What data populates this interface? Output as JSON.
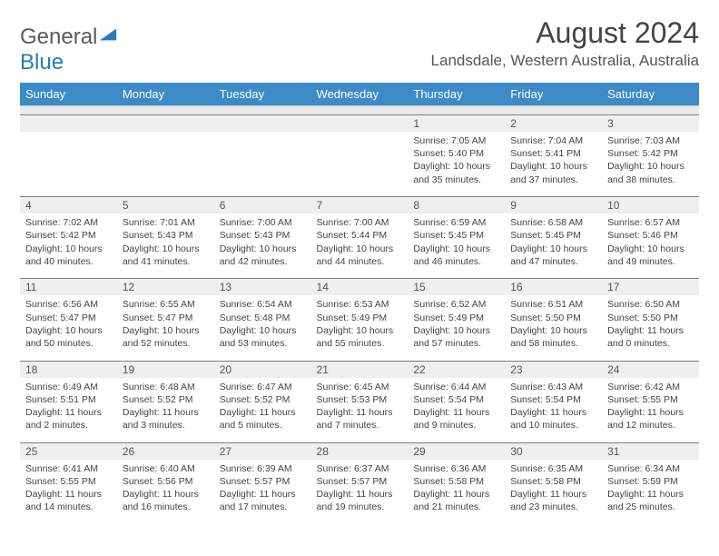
{
  "logo": {
    "general": "General",
    "blue": "Blue"
  },
  "title": "August 2024",
  "location": "Landsdale, Western Australia, Australia",
  "colors": {
    "header_bg": "#3c8bc6",
    "daynum_bg": "#efefef",
    "sep_bg": "#e9e9e9",
    "border": "#7e7e7e",
    "logo_blue": "#2a7ab9",
    "text": "#444444"
  },
  "day_headers": [
    "Sunday",
    "Monday",
    "Tuesday",
    "Wednesday",
    "Thursday",
    "Friday",
    "Saturday"
  ],
  "weeks": [
    {
      "nums": [
        "",
        "",
        "",
        "",
        "1",
        "2",
        "3"
      ],
      "cells": [
        {},
        {},
        {},
        {},
        {
          "sunrise": "Sunrise: 7:05 AM",
          "sunset": "Sunset: 5:40 PM",
          "daylight": "Daylight: 10 hours and 35 minutes."
        },
        {
          "sunrise": "Sunrise: 7:04 AM",
          "sunset": "Sunset: 5:41 PM",
          "daylight": "Daylight: 10 hours and 37 minutes."
        },
        {
          "sunrise": "Sunrise: 7:03 AM",
          "sunset": "Sunset: 5:42 PM",
          "daylight": "Daylight: 10 hours and 38 minutes."
        }
      ]
    },
    {
      "nums": [
        "4",
        "5",
        "6",
        "7",
        "8",
        "9",
        "10"
      ],
      "cells": [
        {
          "sunrise": "Sunrise: 7:02 AM",
          "sunset": "Sunset: 5:42 PM",
          "daylight": "Daylight: 10 hours and 40 minutes."
        },
        {
          "sunrise": "Sunrise: 7:01 AM",
          "sunset": "Sunset: 5:43 PM",
          "daylight": "Daylight: 10 hours and 41 minutes."
        },
        {
          "sunrise": "Sunrise: 7:00 AM",
          "sunset": "Sunset: 5:43 PM",
          "daylight": "Daylight: 10 hours and 42 minutes."
        },
        {
          "sunrise": "Sunrise: 7:00 AM",
          "sunset": "Sunset: 5:44 PM",
          "daylight": "Daylight: 10 hours and 44 minutes."
        },
        {
          "sunrise": "Sunrise: 6:59 AM",
          "sunset": "Sunset: 5:45 PM",
          "daylight": "Daylight: 10 hours and 46 minutes."
        },
        {
          "sunrise": "Sunrise: 6:58 AM",
          "sunset": "Sunset: 5:45 PM",
          "daylight": "Daylight: 10 hours and 47 minutes."
        },
        {
          "sunrise": "Sunrise: 6:57 AM",
          "sunset": "Sunset: 5:46 PM",
          "daylight": "Daylight: 10 hours and 49 minutes."
        }
      ]
    },
    {
      "nums": [
        "11",
        "12",
        "13",
        "14",
        "15",
        "16",
        "17"
      ],
      "cells": [
        {
          "sunrise": "Sunrise: 6:56 AM",
          "sunset": "Sunset: 5:47 PM",
          "daylight": "Daylight: 10 hours and 50 minutes."
        },
        {
          "sunrise": "Sunrise: 6:55 AM",
          "sunset": "Sunset: 5:47 PM",
          "daylight": "Daylight: 10 hours and 52 minutes."
        },
        {
          "sunrise": "Sunrise: 6:54 AM",
          "sunset": "Sunset: 5:48 PM",
          "daylight": "Daylight: 10 hours and 53 minutes."
        },
        {
          "sunrise": "Sunrise: 6:53 AM",
          "sunset": "Sunset: 5:49 PM",
          "daylight": "Daylight: 10 hours and 55 minutes."
        },
        {
          "sunrise": "Sunrise: 6:52 AM",
          "sunset": "Sunset: 5:49 PM",
          "daylight": "Daylight: 10 hours and 57 minutes."
        },
        {
          "sunrise": "Sunrise: 6:51 AM",
          "sunset": "Sunset: 5:50 PM",
          "daylight": "Daylight: 10 hours and 58 minutes."
        },
        {
          "sunrise": "Sunrise: 6:50 AM",
          "sunset": "Sunset: 5:50 PM",
          "daylight": "Daylight: 11 hours and 0 minutes."
        }
      ]
    },
    {
      "nums": [
        "18",
        "19",
        "20",
        "21",
        "22",
        "23",
        "24"
      ],
      "cells": [
        {
          "sunrise": "Sunrise: 6:49 AM",
          "sunset": "Sunset: 5:51 PM",
          "daylight": "Daylight: 11 hours and 2 minutes."
        },
        {
          "sunrise": "Sunrise: 6:48 AM",
          "sunset": "Sunset: 5:52 PM",
          "daylight": "Daylight: 11 hours and 3 minutes."
        },
        {
          "sunrise": "Sunrise: 6:47 AM",
          "sunset": "Sunset: 5:52 PM",
          "daylight": "Daylight: 11 hours and 5 minutes."
        },
        {
          "sunrise": "Sunrise: 6:45 AM",
          "sunset": "Sunset: 5:53 PM",
          "daylight": "Daylight: 11 hours and 7 minutes."
        },
        {
          "sunrise": "Sunrise: 6:44 AM",
          "sunset": "Sunset: 5:54 PM",
          "daylight": "Daylight: 11 hours and 9 minutes."
        },
        {
          "sunrise": "Sunrise: 6:43 AM",
          "sunset": "Sunset: 5:54 PM",
          "daylight": "Daylight: 11 hours and 10 minutes."
        },
        {
          "sunrise": "Sunrise: 6:42 AM",
          "sunset": "Sunset: 5:55 PM",
          "daylight": "Daylight: 11 hours and 12 minutes."
        }
      ]
    },
    {
      "nums": [
        "25",
        "26",
        "27",
        "28",
        "29",
        "30",
        "31"
      ],
      "cells": [
        {
          "sunrise": "Sunrise: 6:41 AM",
          "sunset": "Sunset: 5:55 PM",
          "daylight": "Daylight: 11 hours and 14 minutes."
        },
        {
          "sunrise": "Sunrise: 6:40 AM",
          "sunset": "Sunset: 5:56 PM",
          "daylight": "Daylight: 11 hours and 16 minutes."
        },
        {
          "sunrise": "Sunrise: 6:39 AM",
          "sunset": "Sunset: 5:57 PM",
          "daylight": "Daylight: 11 hours and 17 minutes."
        },
        {
          "sunrise": "Sunrise: 6:37 AM",
          "sunset": "Sunset: 5:57 PM",
          "daylight": "Daylight: 11 hours and 19 minutes."
        },
        {
          "sunrise": "Sunrise: 6:36 AM",
          "sunset": "Sunset: 5:58 PM",
          "daylight": "Daylight: 11 hours and 21 minutes."
        },
        {
          "sunrise": "Sunrise: 6:35 AM",
          "sunset": "Sunset: 5:58 PM",
          "daylight": "Daylight: 11 hours and 23 minutes."
        },
        {
          "sunrise": "Sunrise: 6:34 AM",
          "sunset": "Sunset: 5:59 PM",
          "daylight": "Daylight: 11 hours and 25 minutes."
        }
      ]
    }
  ]
}
